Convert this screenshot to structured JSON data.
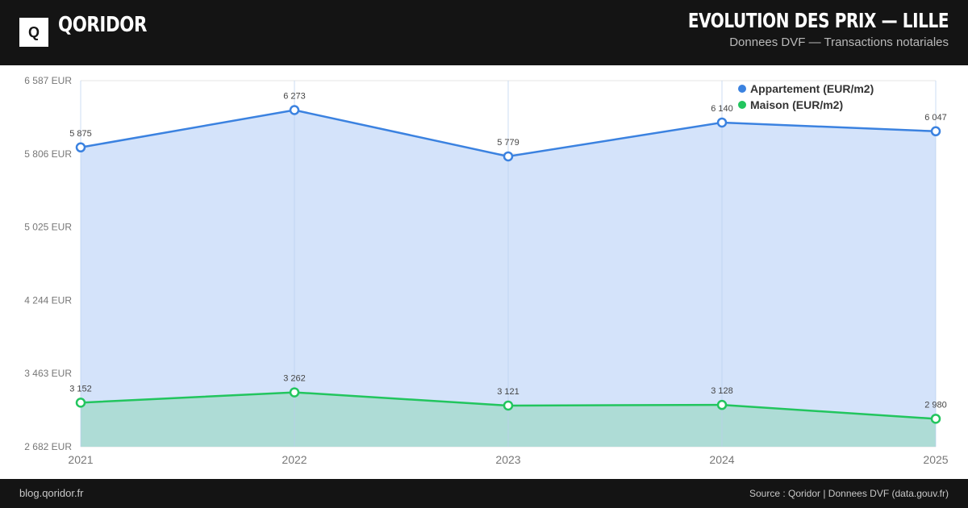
{
  "header": {
    "logo_letter": "Q",
    "brand": "QORIDOR",
    "title": "EVOLUTION DES PRIX — LILLE",
    "subtitle": "Donnees DVF — Transactions notariales"
  },
  "footer": {
    "left": "blog.qoridor.fr",
    "right": "Source : Qoridor | Donnees DVF (data.gouv.fr)"
  },
  "colors": {
    "appartement": "#3b82e0",
    "maison": "#22c55e",
    "appartement_fill": "#d4e3fa",
    "maison_fill": "#aedcd6"
  },
  "chart_data": {
    "type": "area",
    "x": [
      "2021",
      "2022",
      "2023",
      "2024",
      "2025"
    ],
    "y_ticks": [
      "6 587 EUR",
      "5 806 EUR",
      "5 025 EUR",
      "4 244 EUR",
      "3 463 EUR",
      "2 682 EUR"
    ],
    "ylim": [
      2682,
      6587
    ],
    "grid": true,
    "legend_position": "top-right",
    "series": [
      {
        "name": "Appartement (EUR/m2)",
        "values": [
          5875,
          6273,
          5779,
          6140,
          6047
        ],
        "labels": [
          "5 875",
          "6 273",
          "5 779",
          "6 140",
          "6 047"
        ]
      },
      {
        "name": "Maison (EUR/m2)",
        "values": [
          3152,
          3262,
          3121,
          3128,
          2980
        ],
        "labels": [
          "3 152",
          "3 262",
          "3 121",
          "3 128",
          "2 980"
        ]
      }
    ]
  }
}
